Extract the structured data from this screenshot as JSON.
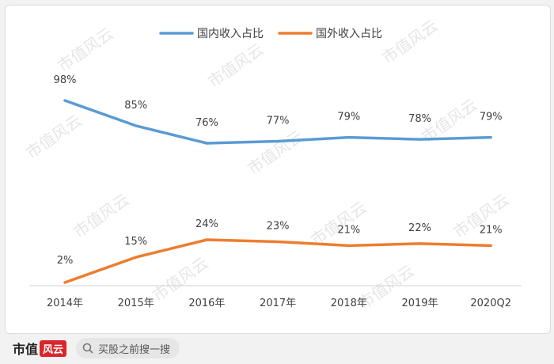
{
  "chart_data": {
    "type": "line",
    "categories": [
      "2014年",
      "2015年",
      "2016年",
      "2017年",
      "2018年",
      "2019年",
      "2020Q2"
    ],
    "series": [
      {
        "name": "国内收入占比",
        "values": [
          98,
          85,
          76,
          77,
          79,
          78,
          79
        ],
        "labels": [
          "98%",
          "85%",
          "76%",
          "77%",
          "79%",
          "78%",
          "79%"
        ],
        "color": "#5b9bd5"
      },
      {
        "name": "国外收入占比",
        "values": [
          2,
          15,
          24,
          23,
          21,
          22,
          21
        ],
        "labels": [
          "2%",
          "15%",
          "24%",
          "23%",
          "21%",
          "22%",
          "21%"
        ],
        "color": "#ed7d31"
      }
    ],
    "legend_position": "top",
    "grid": false
  },
  "watermark": {
    "text": "市值风云"
  },
  "footer": {
    "logo_text": "市值",
    "logo_stamp": "风云",
    "search_placeholder": "买股之前搜一搜"
  }
}
